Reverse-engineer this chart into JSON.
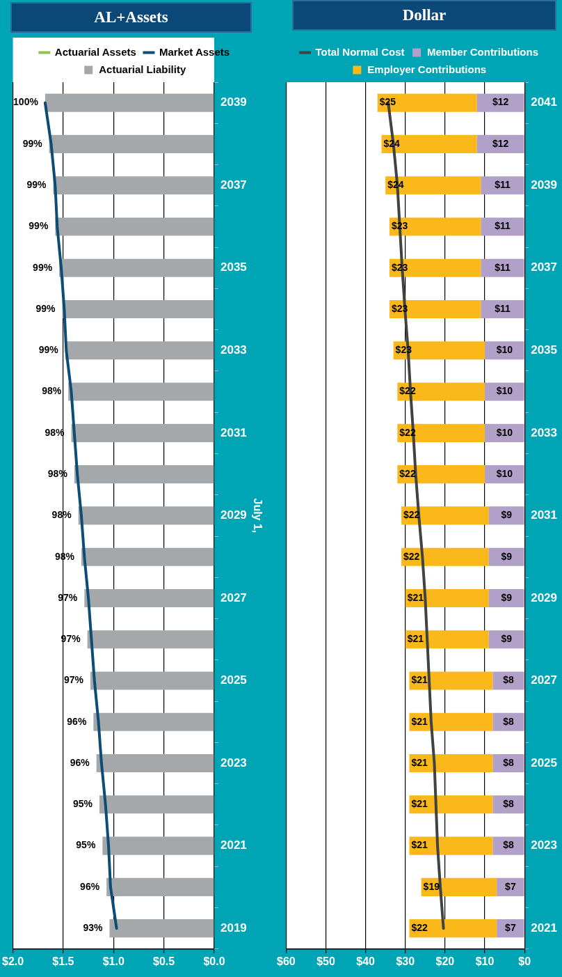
{
  "chart_data": [
    {
      "type": "bar",
      "title": "AL+Assets",
      "orientation": "horizontal",
      "ylabel": "July 1,",
      "categories": [
        "2039",
        null,
        "2037",
        null,
        "2035",
        null,
        "2033",
        null,
        "2031",
        null,
        "2029",
        null,
        "2027",
        null,
        "2025",
        null,
        "2023",
        null,
        "2021",
        null,
        "2019"
      ],
      "series": [
        {
          "name": "Actuarial Liability",
          "color": "#a5a8ab",
          "values": [
            1.68,
            1.64,
            1.6,
            1.58,
            1.54,
            1.51,
            1.48,
            1.45,
            1.42,
            1.39,
            1.35,
            1.32,
            1.29,
            1.26,
            1.23,
            1.2,
            1.17,
            1.14,
            1.11,
            1.07,
            1.04
          ]
        },
        {
          "name": "Actuarial Assets",
          "type": "line",
          "color": "#92c050",
          "values": [
            null,
            null,
            null,
            null,
            null,
            null,
            null,
            null,
            null,
            null,
            null,
            null,
            null,
            null,
            null,
            null,
            null,
            null,
            null,
            null,
            null
          ]
        },
        {
          "name": "Market Assets",
          "type": "line",
          "color": "#0d4d75",
          "values": [
            1.68,
            1.62,
            1.58,
            1.56,
            1.52,
            1.49,
            1.47,
            1.42,
            1.39,
            1.36,
            1.32,
            1.29,
            1.25,
            1.22,
            1.19,
            1.15,
            1.12,
            1.08,
            1.05,
            1.03,
            0.97
          ]
        }
      ],
      "annotations": [
        {
          "text": "100%",
          "y": "2039",
          "x": 1.68
        },
        {
          "text": "99%",
          "x": 1.64
        },
        {
          "text": "99%",
          "y": "2037",
          "x": 1.6
        },
        {
          "text": "99%",
          "x": 1.58
        },
        {
          "text": "99%",
          "y": "2035",
          "x": 1.54
        },
        {
          "text": "99%",
          "x": 1.51
        },
        {
          "text": "99%",
          "y": "2033",
          "x": 1.48
        },
        {
          "text": "98%",
          "x": 1.45
        },
        {
          "text": "98%",
          "y": "2031",
          "x": 1.42
        },
        {
          "text": "98%",
          "x": 1.39
        },
        {
          "text": "98%",
          "y": "2029",
          "x": 1.35
        },
        {
          "text": "98%",
          "x": 1.32
        },
        {
          "text": "97%",
          "y": "2027",
          "x": 1.29
        },
        {
          "text": "97%",
          "x": 1.26
        },
        {
          "text": "97%",
          "y": "2025",
          "x": 1.23
        },
        {
          "text": "96%",
          "x": 1.2
        },
        {
          "text": "96%",
          "y": "2023",
          "x": 1.17
        },
        {
          "text": "95%",
          "x": 1.14
        },
        {
          "text": "95%",
          "y": "2021",
          "x": 1.11
        },
        {
          "text": "96%",
          "x": 1.07
        },
        {
          "text": "93%",
          "y": "2019",
          "x": 1.04
        }
      ],
      "xlim": [
        2,
        0
      ],
      "xticks": [
        {
          "value": 2,
          "label": "$2.0"
        },
        {
          "value": 1.5,
          "label": "$1.5"
        },
        {
          "value": 1,
          "label": "$1.0"
        },
        {
          "value": 0.5,
          "label": "$0.5"
        },
        {
          "value": 0,
          "label": "$0.0"
        }
      ],
      "grid": "x",
      "legend": "top"
    },
    {
      "type": "bar",
      "title": "Dollar",
      "orientation": "horizontal",
      "stacked": true,
      "categories": [
        "2041",
        null,
        "2039",
        null,
        "2037",
        null,
        "2035",
        null,
        "2033",
        null,
        "2031",
        null,
        "2029",
        null,
        "2027",
        null,
        "2025",
        null,
        "2023",
        null,
        "2021"
      ],
      "series": [
        {
          "name": "Member Contributions",
          "color": "#b1a0c7",
          "values": [
            12,
            12,
            11,
            11,
            11,
            11,
            10,
            10,
            10,
            10,
            9,
            9,
            9,
            9,
            8,
            8,
            8,
            8,
            8,
            7,
            7
          ],
          "value_labels": [
            "$12",
            "$12",
            "$11",
            "$11",
            "$11",
            "$11",
            "$10",
            "$10",
            "$10",
            "$10",
            "$9",
            "$9",
            "$9",
            "$9",
            "$8",
            "$8",
            "$8",
            "$8",
            "$8",
            "$7",
            "$7"
          ]
        },
        {
          "name": "Employer Contributions",
          "color": "#fbb81a",
          "values": [
            25,
            24,
            24,
            23,
            23,
            23,
            23,
            22,
            22,
            22,
            22,
            22,
            21,
            21,
            21,
            21,
            21,
            21,
            21,
            19,
            22
          ],
          "value_labels": [
            "$25",
            "$24",
            "$24",
            "$23",
            "$23",
            "$23",
            "$23",
            "$22",
            "$22",
            "$22",
            "$22",
            "$22",
            "$21",
            "$21",
            "$21",
            "$21",
            "$21",
            "$21",
            "$21",
            "$19",
            "$22"
          ]
        },
        {
          "name": "Total Normal Cost",
          "type": "line",
          "color": "#3f4443",
          "values": [
            34.3,
            33.0,
            32.0,
            31.4,
            30.8,
            30.1,
            29.3,
            28.7,
            28.0,
            27.4,
            26.6,
            25.7,
            25.0,
            24.5,
            24.0,
            23.5,
            22.7,
            22.3,
            21.9,
            21.2,
            20.4
          ]
        }
      ],
      "xlim": [
        60,
        0
      ],
      "xticks": [
        {
          "value": 60,
          "label": "$60"
        },
        {
          "value": 50,
          "label": "$50"
        },
        {
          "value": 40,
          "label": "$40"
        },
        {
          "value": 30,
          "label": "$30"
        },
        {
          "value": 20,
          "label": "$20"
        },
        {
          "value": 10,
          "label": "$10"
        },
        {
          "value": 0,
          "label": "$0"
        }
      ],
      "grid": "x",
      "legend": "top"
    }
  ]
}
